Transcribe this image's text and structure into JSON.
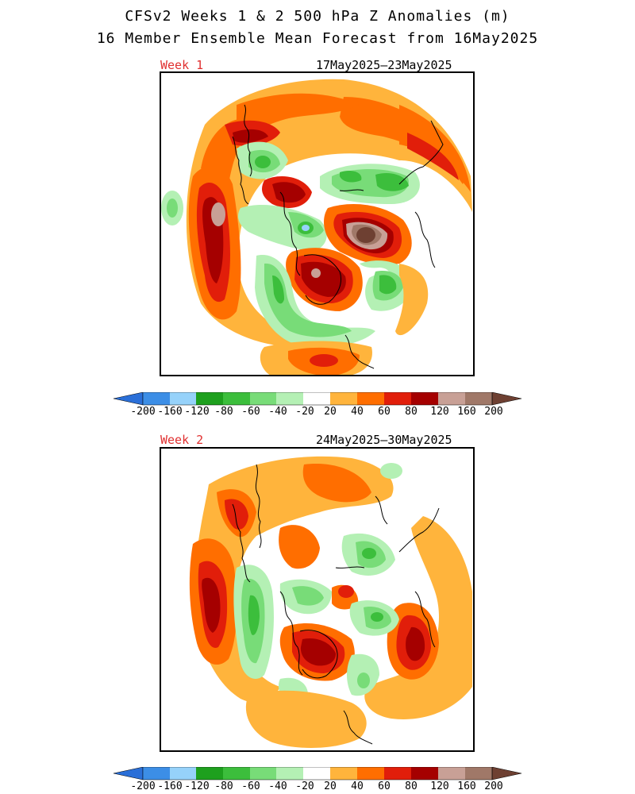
{
  "header": {
    "title_line1": "CFSv2 Weeks 1 & 2 500 hPa Z Anomalies (m)",
    "title_line2": "16 Member Ensemble Mean Forecast from 16May2025"
  },
  "panels": [
    {
      "week_label": "Week 1",
      "date_range": "17May2025–23May2025"
    },
    {
      "week_label": "Week 2",
      "date_range": "24May2025–30May2025"
    }
  ],
  "colorbar": {
    "labels": [
      "-200",
      "-160",
      "-120",
      "-80",
      "-60",
      "-40",
      "-20",
      "20",
      "40",
      "60",
      "80",
      "120",
      "160",
      "200"
    ],
    "colors": {
      "below_-200": "#2a6fd8",
      "-200_-160": "#3c8ee6",
      "-160_-120": "#96d2fa",
      "-120_-80": "#1ea01e",
      "-80_-60": "#3cbe3c",
      "-60_-40": "#78dc78",
      "-40_-20": "#b4f0b4",
      "-20_20": "#ffffff",
      "20_40": "#ffb43c",
      "40_60": "#ff6e00",
      "60_80": "#e11e0a",
      "80_120": "#a50000",
      "120_160": "#c8a096",
      "160_200": "#a07868",
      "above_200": "#6e4032"
    }
  }
}
